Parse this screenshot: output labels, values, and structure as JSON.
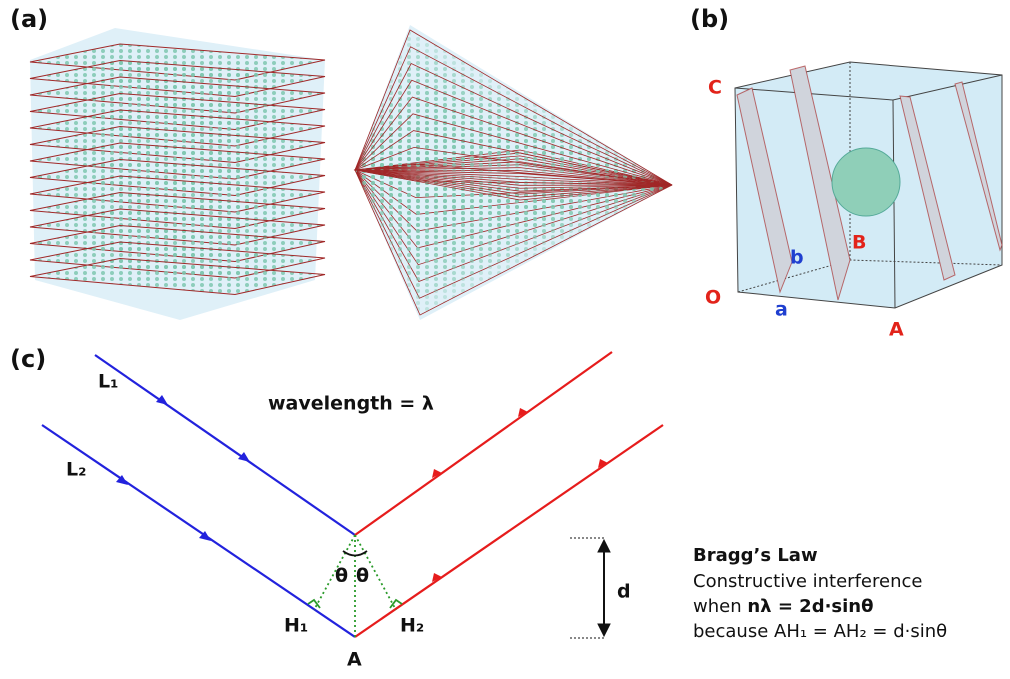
{
  "panel_a": {
    "label": "(a)"
  },
  "panel_b": {
    "label": "(b)",
    "points": [
      "C",
      "O",
      "a",
      "b",
      "B",
      "A"
    ]
  },
  "panel_c": {
    "label": "(c)",
    "rays": [
      "L₁",
      "L₂"
    ],
    "wavelength": "wavelength = λ",
    "angles": [
      "θ",
      "θ"
    ],
    "feet": [
      "H₁",
      "H₂"
    ],
    "origin": "A",
    "spacing": "d",
    "law": {
      "title": "Bragg’s Law",
      "line1": "Constructive interference",
      "when": "when",
      "formula": "nλ = 2d·sinθ",
      "because": "because AH₁ = AH₂ = d·sinθ"
    }
  }
}
